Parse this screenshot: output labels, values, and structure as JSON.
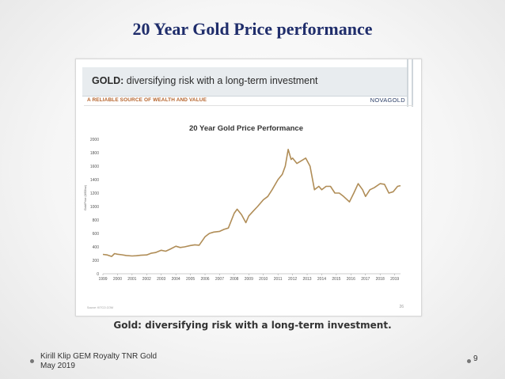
{
  "slide": {
    "title": "20 Year Gold Price performance",
    "caption": "Gold: diversifying risk with a long-term investment.",
    "footer_line1": "Kirill Klip GEM Royalty TNR Gold",
    "footer_line2": "May 2019",
    "page_number": "9"
  },
  "embed": {
    "header_bold": "GOLD:",
    "header_rest": " diversifying risk with a long-term investment",
    "subhead": "A RELIABLE SOURCE OF WEALTH AND VALUE",
    "logo": "NOVAGOLD",
    "source_note": "Source: KITCO.COM",
    "small_page": "26"
  },
  "colors": {
    "title": "#1f2d6b",
    "subhead": "#b5632b",
    "line": "#b08d57",
    "header_bg": "#e8ecef"
  },
  "chart_data": {
    "type": "line",
    "title": "20 Year Gold Price Performance",
    "ylabel": "Gold Price (USD/oz)",
    "xlabel": "",
    "ylim": [
      0,
      2000
    ],
    "yticks": [
      "0",
      "200",
      "400",
      "600",
      "800",
      "1000",
      "1200",
      "1400",
      "1600",
      "1800",
      "2000"
    ],
    "xlim": [
      1999,
      2019.4
    ],
    "xticks": [
      "1999",
      "2000",
      "2001",
      "2002",
      "2003",
      "2004",
      "2005",
      "2006",
      "2007",
      "2008",
      "2009",
      "2010",
      "2011",
      "2012",
      "2013",
      "2014",
      "2015",
      "2016",
      "2017",
      "2018",
      "2019"
    ],
    "grid": false,
    "series": [
      {
        "x": [
          1999.0,
          1999.3,
          1999.6,
          1999.8,
          2000.0,
          2000.3,
          2000.6,
          2001.0,
          2001.3,
          2001.6,
          2002.0,
          2002.3,
          2002.6,
          2003.0,
          2003.3,
          2003.6,
          2004.0,
          2004.3,
          2004.6,
          2005.0,
          2005.3,
          2005.6,
          2006.0,
          2006.3,
          2006.6,
          2007.0,
          2007.3,
          2007.6,
          2008.0,
          2008.2,
          2008.5,
          2008.8,
          2009.0,
          2009.3,
          2009.6,
          2010.0,
          2010.3,
          2010.6,
          2011.0,
          2011.3,
          2011.5,
          2011.7,
          2011.9,
          2012.0,
          2012.3,
          2012.6,
          2012.9,
          2013.2,
          2013.5,
          2013.8,
          2014.0,
          2014.3,
          2014.6,
          2014.9,
          2015.2,
          2015.5,
          2015.9,
          2016.2,
          2016.5,
          2016.8,
          2017.0,
          2017.3,
          2017.6,
          2018.0,
          2018.3,
          2018.6,
          2018.9,
          2019.2,
          2019.4
        ],
        "values": [
          288,
          280,
          258,
          300,
          290,
          282,
          272,
          265,
          268,
          275,
          280,
          305,
          315,
          350,
          335,
          365,
          410,
          390,
          400,
          420,
          430,
          425,
          550,
          600,
          620,
          630,
          660,
          680,
          900,
          960,
          880,
          760,
          860,
          930,
          1000,
          1100,
          1150,
          1250,
          1400,
          1480,
          1600,
          1850,
          1700,
          1720,
          1640,
          1680,
          1720,
          1600,
          1250,
          1300,
          1250,
          1300,
          1300,
          1200,
          1200,
          1150,
          1070,
          1200,
          1340,
          1250,
          1150,
          1250,
          1280,
          1340,
          1330,
          1200,
          1220,
          1300,
          1310
        ]
      }
    ]
  }
}
